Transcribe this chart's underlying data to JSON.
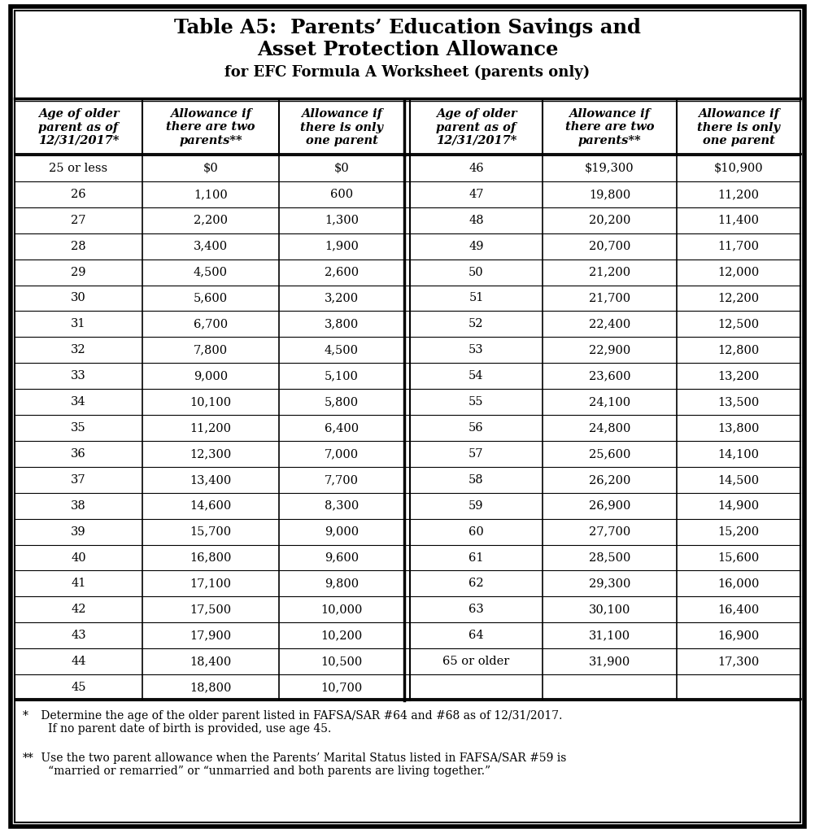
{
  "title_line1": "Table A5:  Parents’ Education Savings and",
  "title_line2": "Asset Protection Allowance",
  "subtitle": "for EFC Formula A Worksheet (parents only)",
  "col_headers": [
    "Age of older\nparent as of\n12/31/2017*",
    "Allowance if\nthere are two\nparents**",
    "Allowance if\nthere is only\none parent",
    "Age of older\nparent as of\n12/31/2017*",
    "Allowance if\nthere are two\nparents**",
    "Allowance if\nthere is only\none parent"
  ],
  "left_data": [
    [
      "25 or less",
      "$0",
      "$0"
    ],
    [
      "26",
      "1,100",
      "600"
    ],
    [
      "27",
      "2,200",
      "1,300"
    ],
    [
      "28",
      "3,400",
      "1,900"
    ],
    [
      "29",
      "4,500",
      "2,600"
    ],
    [
      "30",
      "5,600",
      "3,200"
    ],
    [
      "31",
      "6,700",
      "3,800"
    ],
    [
      "32",
      "7,800",
      "4,500"
    ],
    [
      "33",
      "9,000",
      "5,100"
    ],
    [
      "34",
      "10,100",
      "5,800"
    ],
    [
      "35",
      "11,200",
      "6,400"
    ],
    [
      "36",
      "12,300",
      "7,000"
    ],
    [
      "37",
      "13,400",
      "7,700"
    ],
    [
      "38",
      "14,600",
      "8,300"
    ],
    [
      "39",
      "15,700",
      "9,000"
    ],
    [
      "40",
      "16,800",
      "9,600"
    ],
    [
      "41",
      "17,100",
      "9,800"
    ],
    [
      "42",
      "17,500",
      "10,000"
    ],
    [
      "43",
      "17,900",
      "10,200"
    ],
    [
      "44",
      "18,400",
      "10,500"
    ],
    [
      "45",
      "18,800",
      "10,700"
    ]
  ],
  "right_data": [
    [
      "46",
      "$19,300",
      "$10,900"
    ],
    [
      "47",
      "19,800",
      "11,200"
    ],
    [
      "48",
      "20,200",
      "11,400"
    ],
    [
      "49",
      "20,700",
      "11,700"
    ],
    [
      "50",
      "21,200",
      "12,000"
    ],
    [
      "51",
      "21,700",
      "12,200"
    ],
    [
      "52",
      "22,400",
      "12,500"
    ],
    [
      "53",
      "22,900",
      "12,800"
    ],
    [
      "54",
      "23,600",
      "13,200"
    ],
    [
      "55",
      "24,100",
      "13,500"
    ],
    [
      "56",
      "24,800",
      "13,800"
    ],
    [
      "57",
      "25,600",
      "14,100"
    ],
    [
      "58",
      "26,200",
      "14,500"
    ],
    [
      "59",
      "26,900",
      "14,900"
    ],
    [
      "60",
      "27,700",
      "15,200"
    ],
    [
      "61",
      "28,500",
      "15,600"
    ],
    [
      "62",
      "29,300",
      "16,000"
    ],
    [
      "63",
      "30,100",
      "16,400"
    ],
    [
      "64",
      "31,100",
      "16,900"
    ],
    [
      "65 or older",
      "31,900",
      "17,300"
    ],
    [
      "",
      "",
      ""
    ]
  ],
  "footnote1_star": "*",
  "footnote1_text": " Determine the age of the older parent listed in FAFSA/SAR #64 and #68 as of 12/31/2017.\n   If no parent date of birth is provided, use age 45.",
  "footnote2_star": "**",
  "footnote2_text": " Use the two parent allowance when the Parents’ Marital Status listed in FAFSA/SAR #59 is\n   “married or remarried” or “unmarried and both parents are living together.”",
  "bg_color": "#ffffff"
}
